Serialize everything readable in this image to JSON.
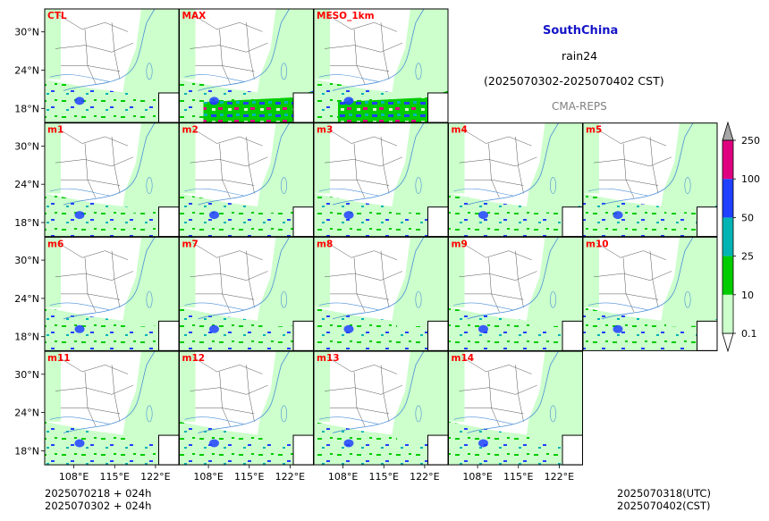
{
  "header": {
    "region": "SouthChina",
    "variable": "rain24",
    "period": "(2025070302-2025070402 CST)",
    "source": "CMA-REPS"
  },
  "footer": {
    "init_utc": "2025070218  +  024h",
    "init_cst": "2025070302  +  024h",
    "valid_utc": "2025070318(UTC)",
    "valid_cst": "2025070402(CST)"
  },
  "chart_data": {
    "type": "heatmap",
    "title": "rain24",
    "panels": [
      "CTL",
      "MAX",
      "MESO_1km",
      "m1",
      "m2",
      "m3",
      "m4",
      "m5",
      "m6",
      "m7",
      "m8",
      "m9",
      "m10",
      "m11",
      "m12",
      "m13",
      "m14"
    ],
    "x_ticks": [
      "108°E",
      "115°E",
      "122°E"
    ],
    "x_tick_values": [
      108,
      115,
      122
    ],
    "y_ticks": [
      "30°N",
      "24°N",
      "18°N"
    ],
    "y_tick_values": [
      30,
      24,
      18
    ],
    "colorbar": {
      "levels": [
        0.1,
        10,
        25,
        50,
        100,
        250
      ],
      "labels": [
        "0.1",
        "10",
        "25",
        "50",
        "100",
        "250"
      ],
      "colors": [
        "#ccffcc",
        "#00cc00",
        "#00b4b4",
        "#2040ff",
        "#e0007f"
      ],
      "extend": "both",
      "under_color": "#ffffff",
      "over_color": "#a6a6a6"
    },
    "colors": {
      "panel_label": "#ff0000",
      "region_title": "#1414c8",
      "source": "#808080"
    }
  }
}
